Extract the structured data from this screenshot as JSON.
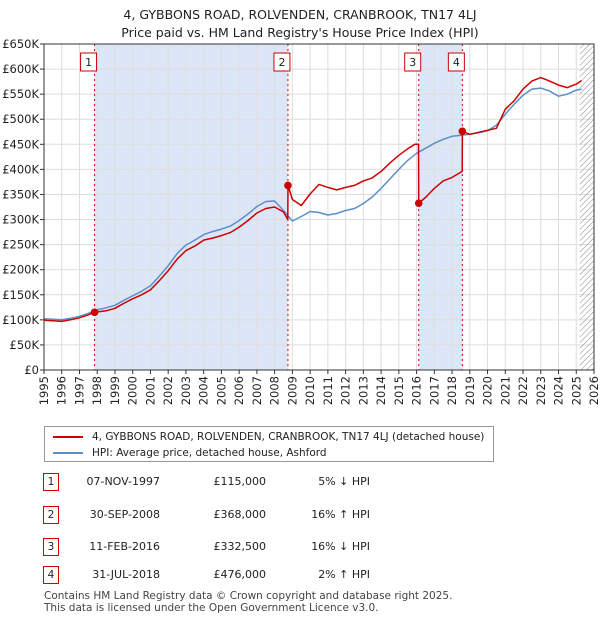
{
  "title": {
    "line1": "4, GYBBONS ROAD, ROLVENDEN, CRANBROOK, TN17 4LJ",
    "line2": "Price paid vs. HM Land Registry's House Price Index (HPI)"
  },
  "colors": {
    "property": "#cc0000",
    "hpi": "#5b8ec9",
    "shade": "#dde6f6",
    "grid": "#dddddd",
    "hatch": "#888888"
  },
  "chart_data": {
    "type": "line",
    "xlim": [
      1995,
      2026
    ],
    "ylim": [
      0,
      650000
    ],
    "x_ticks": [
      "1995",
      "1996",
      "1997",
      "1998",
      "1999",
      "2000",
      "2001",
      "2002",
      "2003",
      "2004",
      "2005",
      "2006",
      "2007",
      "2008",
      "2009",
      "2010",
      "2011",
      "2012",
      "2013",
      "2014",
      "2015",
      "2016",
      "2017",
      "2018",
      "2019",
      "2020",
      "2021",
      "2022",
      "2023",
      "2024",
      "2025",
      "2026"
    ],
    "y_ticks": [
      {
        "value": 0,
        "label": "£0"
      },
      {
        "value": 50000,
        "label": "£50K"
      },
      {
        "value": 100000,
        "label": "£100K"
      },
      {
        "value": 150000,
        "label": "£150K"
      },
      {
        "value": 200000,
        "label": "£200K"
      },
      {
        "value": 250000,
        "label": "£250K"
      },
      {
        "value": 300000,
        "label": "£300K"
      },
      {
        "value": 350000,
        "label": "£350K"
      },
      {
        "value": 400000,
        "label": "£400K"
      },
      {
        "value": 450000,
        "label": "£450K"
      },
      {
        "value": 500000,
        "label": "£500K"
      },
      {
        "value": 550000,
        "label": "£550K"
      },
      {
        "value": 600000,
        "label": "£600K"
      },
      {
        "value": 650000,
        "label": "£650K"
      }
    ],
    "hatch_from": 2025.2,
    "shaded_ranges": [
      [
        1997.85,
        2008.75
      ],
      [
        2016.12,
        2018.58
      ]
    ],
    "series": [
      {
        "name": "4, GYBBONS ROAD, ROLVENDEN, CRANBROOK, TN17 4LJ (detached house)",
        "x": [
          1995,
          1995.5,
          1996,
          1996.5,
          1997,
          1997.5,
          1997.85,
          1998.5,
          1999,
          1999.5,
          2000,
          2000.5,
          2001,
          2001.5,
          2002,
          2002.5,
          2003,
          2003.5,
          2004,
          2004.5,
          2005,
          2005.5,
          2006,
          2006.5,
          2007,
          2007.5,
          2008,
          2008.5,
          2008.74,
          2008.75,
          2009,
          2009.5,
          2010,
          2010.5,
          2011,
          2011.5,
          2012,
          2012.5,
          2013,
          2013.5,
          2014,
          2014.5,
          2015,
          2015.5,
          2015.9,
          2016.11,
          2016.12,
          2016.5,
          2017,
          2017.5,
          2018,
          2018.57,
          2018.58,
          2019,
          2019.5,
          2020,
          2020.5,
          2021,
          2021.5,
          2022,
          2022.5,
          2023,
          2023.5,
          2024,
          2024.5,
          2025,
          2025.3
        ],
        "values": [
          99000,
          98000,
          97000,
          100000,
          104000,
          110000,
          115000,
          118000,
          123000,
          133000,
          142000,
          150000,
          160000,
          178000,
          198000,
          221000,
          238000,
          247000,
          259000,
          263000,
          268000,
          274000,
          285000,
          298000,
          313000,
          322000,
          325000,
          315000,
          300000,
          368000,
          340000,
          328000,
          351000,
          370000,
          364000,
          359000,
          364000,
          368000,
          377000,
          383000,
          396000,
          413000,
          428000,
          441000,
          450000,
          450000,
          332500,
          344000,
          362000,
          377000,
          384000,
          396000,
          476000,
          470000,
          474000,
          478000,
          482000,
          520000,
          537000,
          560000,
          576000,
          583000,
          576000,
          568000,
          563000,
          570000,
          577000
        ]
      },
      {
        "name": "HPI: Average price, detached house, Ashford",
        "x": [
          1995,
          1995.5,
          1996,
          1996.5,
          1997,
          1997.5,
          1998,
          1998.5,
          1999,
          1999.5,
          2000,
          2000.5,
          2001,
          2001.5,
          2002,
          2002.5,
          2003,
          2003.5,
          2004,
          2004.5,
          2005,
          2005.5,
          2006,
          2006.5,
          2007,
          2007.5,
          2008,
          2008.5,
          2009,
          2009.5,
          2010,
          2010.5,
          2011,
          2011.5,
          2012,
          2012.5,
          2013,
          2013.5,
          2014,
          2014.5,
          2015,
          2015.5,
          2016,
          2016.5,
          2017,
          2017.5,
          2018,
          2018.5,
          2019,
          2019.5,
          2020,
          2020.5,
          2021,
          2021.5,
          2022,
          2022.5,
          2023,
          2023.5,
          2024,
          2024.5,
          2025,
          2025.3
        ],
        "values": [
          102000,
          101000,
          100000,
          103000,
          107000,
          113000,
          120000,
          124000,
          129000,
          139000,
          148000,
          157000,
          168000,
          187000,
          208000,
          232000,
          249000,
          259000,
          270000,
          276000,
          281000,
          287000,
          298000,
          311000,
          326000,
          336000,
          337000,
          318000,
          297000,
          306000,
          316000,
          314000,
          309000,
          312000,
          318000,
          322000,
          332000,
          345000,
          362000,
          381000,
          400000,
          418000,
          432000,
          442000,
          452000,
          460000,
          466000,
          468000,
          470000,
          473000,
          477000,
          488000,
          510000,
          530000,
          548000,
          560000,
          562000,
          556000,
          546000,
          550000,
          558000,
          560000
        ]
      }
    ],
    "sales": [
      {
        "num": "1",
        "x": 1997.85,
        "value": 115000
      },
      {
        "num": "2",
        "x": 2008.75,
        "value": 368000
      },
      {
        "num": "3",
        "x": 2016.12,
        "value": 332500
      },
      {
        "num": "4",
        "x": 2018.58,
        "value": 476000
      }
    ]
  },
  "legend": {
    "property_label": "4, GYBBONS ROAD, ROLVENDEN, CRANBROOK, TN17 4LJ (detached house)",
    "hpi_label": "HPI: Average price, detached house, Ashford"
  },
  "events": [
    {
      "num": "1",
      "date": "07-NOV-1997",
      "price": "£115,000",
      "hpi": "5% ↓ HPI"
    },
    {
      "num": "2",
      "date": "30-SEP-2008",
      "price": "£368,000",
      "hpi": "16% ↑ HPI"
    },
    {
      "num": "3",
      "date": "11-FEB-2016",
      "price": "£332,500",
      "hpi": "16% ↓ HPI"
    },
    {
      "num": "4",
      "date": "31-JUL-2018",
      "price": "£476,000",
      "hpi": "2% ↑ HPI"
    }
  ],
  "footer": {
    "line1": "Contains HM Land Registry data © Crown copyright and database right 2025.",
    "line2": "This data is licensed under the Open Government Licence v3.0."
  }
}
